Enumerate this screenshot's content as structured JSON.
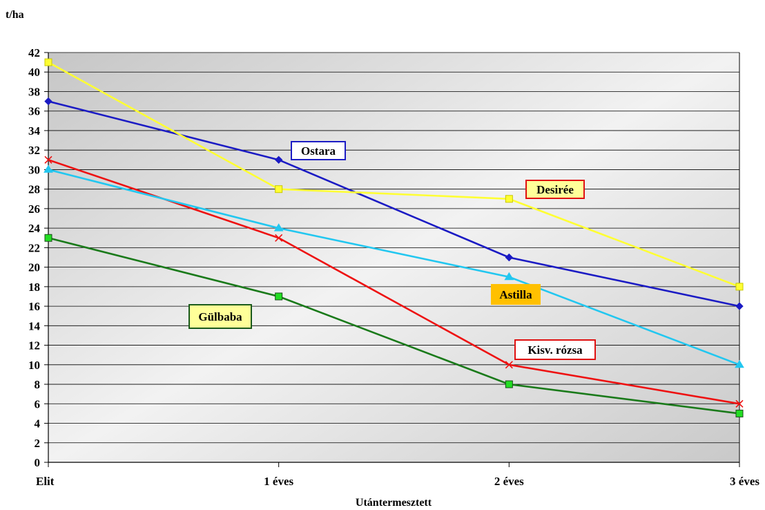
{
  "chart_data": {
    "type": "line",
    "ylabel": "t/ha",
    "xlabel": "Utántermesztett",
    "categories": [
      "Elit",
      "1 éves",
      "2 éves",
      "3 éves"
    ],
    "ylim": [
      0,
      42
    ],
    "ytick_step": 2,
    "grid": true,
    "legend": "none",
    "series": [
      {
        "name": "Ostara",
        "values": [
          37,
          31,
          21,
          16
        ],
        "color": "#1b1bc4",
        "marker": "diamond",
        "marker_fill": "#1b1bc4",
        "label_bg": "#ffffff",
        "label_border": "#1b1bc4"
      },
      {
        "name": "Desirée",
        "values": [
          41,
          28,
          27,
          18
        ],
        "color": "#ffff33",
        "marker": "square",
        "marker_fill": "#ffff33",
        "label_bg": "#ffff99",
        "label_border": "#e01010"
      },
      {
        "name": "Kisv. rózsa",
        "values": [
          31,
          23,
          10,
          6
        ],
        "color": "#ee1111",
        "marker": "x",
        "marker_fill": "#ee1111",
        "label_bg": "#ffffff",
        "label_border": "#e01010"
      },
      {
        "name": "Astilla",
        "values": [
          30,
          24,
          19,
          10
        ],
        "color": "#22c7f0",
        "marker": "triangle",
        "marker_fill": "#22c7f0",
        "label_bg": "#ffc000",
        "label_border": "#ffc000"
      },
      {
        "name": "Gülbaba",
        "values": [
          23,
          17,
          8,
          5
        ],
        "color": "#1a7a1a",
        "marker": "square",
        "marker_fill": "#22dd22",
        "label_bg": "#ffff99",
        "label_border": "#1a5a1a"
      }
    ]
  }
}
